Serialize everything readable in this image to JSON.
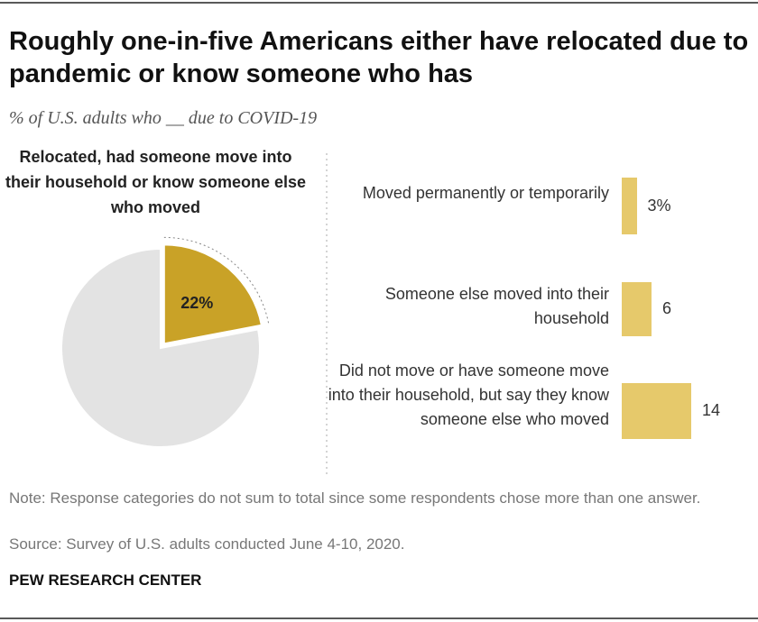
{
  "title": "Roughly one-in-five Americans either have relocated due to pandemic or know someone who has",
  "subtitle": "% of U.S. adults who __ due to COVID-19",
  "chart_data": [
    {
      "type": "pie",
      "title": "Relocated, had someone move into their household or know someone else who moved",
      "values": [
        22,
        78
      ],
      "value_labels": [
        "22%",
        null
      ],
      "colors": [
        "#c9a227",
        "#e3e3e3"
      ]
    },
    {
      "type": "bar",
      "orientation": "horizontal",
      "categories": [
        "Moved permanently or temporarily",
        "Someone else moved into their household",
        "Did not move or have someone move into their household, but say they know someone else who moved"
      ],
      "values": [
        3,
        6,
        14
      ],
      "value_labels": [
        "3%",
        "6",
        "14"
      ],
      "color": "#e6c96b"
    }
  ],
  "note": "Note: Response categories do not sum to total since some respondents chose more than one answer.",
  "source": "Source: Survey of U.S. adults conducted June 4-10, 2020.",
  "credit": "PEW RESEARCH CENTER"
}
